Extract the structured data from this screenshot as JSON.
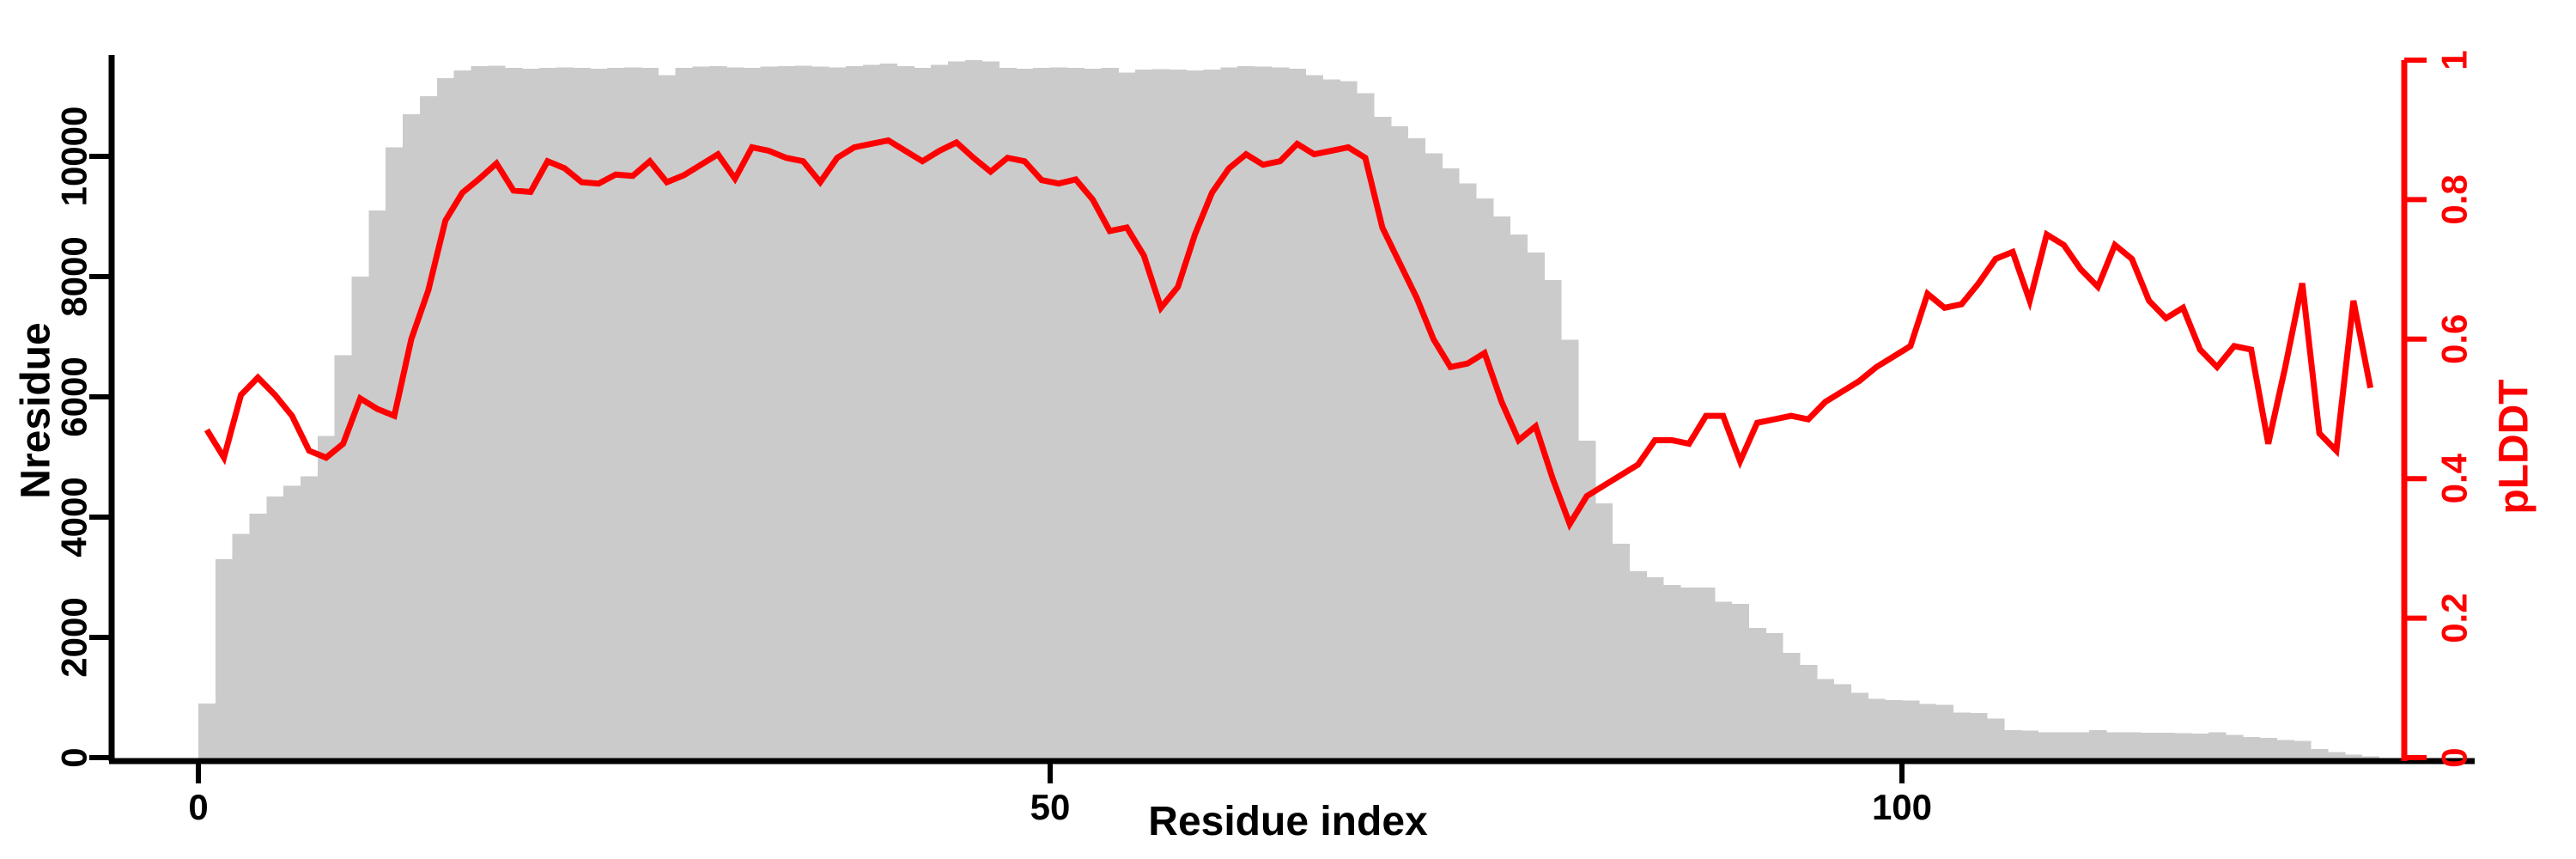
{
  "figure": {
    "background_color": "#ffffff",
    "axis_color": "#000000",
    "secondary_color": "#ff0000",
    "bar_color": "#cbcbcb"
  },
  "chart_data": {
    "type": "combo",
    "subtype": "histogram-bars with overlaid line, dual y-axes",
    "title": "",
    "xlabel": "Residue index",
    "x_tick_labels": [
      "0",
      "50",
      "100"
    ],
    "x_tick_values": [
      0,
      50,
      100
    ],
    "x_range": [
      0,
      134
    ],
    "grid": false,
    "legend": "none",
    "left_axis": {
      "label": "Nresidue",
      "tick_labels": [
        "0",
        "2000",
        "4000",
        "6000",
        "8000",
        "10000"
      ],
      "tick_values": [
        0,
        2000,
        4000,
        6000,
        8000,
        10000
      ],
      "range": [
        0,
        11600
      ],
      "color": "#000000"
    },
    "right_axis": {
      "label": "pLDDT",
      "tick_labels": [
        "0",
        "0.2",
        "0.4",
        "0.6",
        "0.8",
        "1"
      ],
      "tick_values": [
        0,
        0.2,
        0.4,
        0.6,
        0.8,
        1
      ],
      "range": [
        0,
        1
      ],
      "color": "#ff0000"
    },
    "series": [
      {
        "name": "Nresidue",
        "type": "bar",
        "axis": "left",
        "color": "#cbcbcb",
        "x_start": 0,
        "bin_width": 1,
        "values": [
          900,
          3300,
          3720,
          4060,
          4345,
          4520,
          4680,
          5350,
          6690,
          8000,
          9100,
          10150,
          10700,
          11000,
          11300,
          11430,
          11500,
          11510,
          11470,
          11460,
          11470,
          11480,
          11470,
          11460,
          11470,
          11480,
          11470,
          11350,
          11470,
          11490,
          11500,
          11480,
          11470,
          11490,
          11500,
          11510,
          11490,
          11480,
          11500,
          11520,
          11540,
          11500,
          11470,
          11520,
          11580,
          11600,
          11580,
          11470,
          11460,
          11470,
          11480,
          11470,
          11460,
          11470,
          11390,
          11440,
          11450,
          11440,
          11430,
          11440,
          11480,
          11500,
          11490,
          11480,
          11460,
          11350,
          11280,
          11250,
          11050,
          10660,
          10500,
          10300,
          10050,
          9800,
          9550,
          9300,
          9000,
          8700,
          8400,
          7940,
          6950,
          5270,
          4230,
          3560,
          3100,
          3000,
          2870,
          2830,
          2830,
          2590,
          2560,
          2160,
          2070,
          1740,
          1540,
          1310,
          1220,
          1080,
          980,
          960,
          950,
          890,
          880,
          750,
          740,
          650,
          460,
          450,
          420,
          420,
          420,
          460,
          420,
          420,
          415,
          415,
          410,
          400,
          420,
          380,
          340,
          330,
          290,
          280,
          140,
          95,
          50,
          25
        ]
      },
      {
        "name": "pLDDT",
        "type": "line",
        "axis": "right",
        "color": "#ff0000",
        "x_offset": 0.5,
        "values": [
          0.47,
          0.43,
          0.52,
          0.545,
          0.52,
          0.49,
          0.44,
          0.43,
          0.45,
          0.515,
          0.5,
          0.49,
          0.6,
          0.67,
          0.77,
          0.81,
          0.83,
          0.852,
          0.813,
          0.811,
          0.855,
          0.845,
          0.825,
          0.823,
          0.836,
          0.834,
          0.855,
          0.825,
          0.835,
          0.85,
          0.865,
          0.83,
          0.875,
          0.87,
          0.86,
          0.855,
          0.825,
          0.86,
          0.875,
          0.88,
          0.885,
          0.87,
          0.855,
          0.87,
          0.882,
          0.86,
          0.84,
          0.86,
          0.855,
          0.828,
          0.823,
          0.829,
          0.8,
          0.755,
          0.76,
          0.72,
          0.645,
          0.675,
          0.75,
          0.81,
          0.845,
          0.865,
          0.85,
          0.855,
          0.88,
          0.865,
          0.87,
          0.875,
          0.86,
          0.76,
          0.71,
          0.66,
          0.6,
          0.56,
          0.565,
          0.58,
          0.51,
          0.455,
          0.475,
          0.4,
          0.335,
          0.375,
          0.39,
          0.405,
          0.42,
          0.455,
          0.455,
          0.45,
          0.49,
          0.49,
          0.425,
          0.48,
          0.485,
          0.49,
          0.485,
          0.51,
          0.525,
          0.54,
          0.56,
          0.575,
          0.59,
          0.665,
          0.645,
          0.65,
          0.68,
          0.715,
          0.725,
          0.655,
          0.75,
          0.735,
          0.7,
          0.675,
          0.735,
          0.715,
          0.655,
          0.63,
          0.645,
          0.585,
          0.56,
          0.59,
          0.585,
          0.45,
          0.56,
          0.68,
          0.465,
          0.44,
          0.655,
          0.53
        ]
      }
    ]
  }
}
